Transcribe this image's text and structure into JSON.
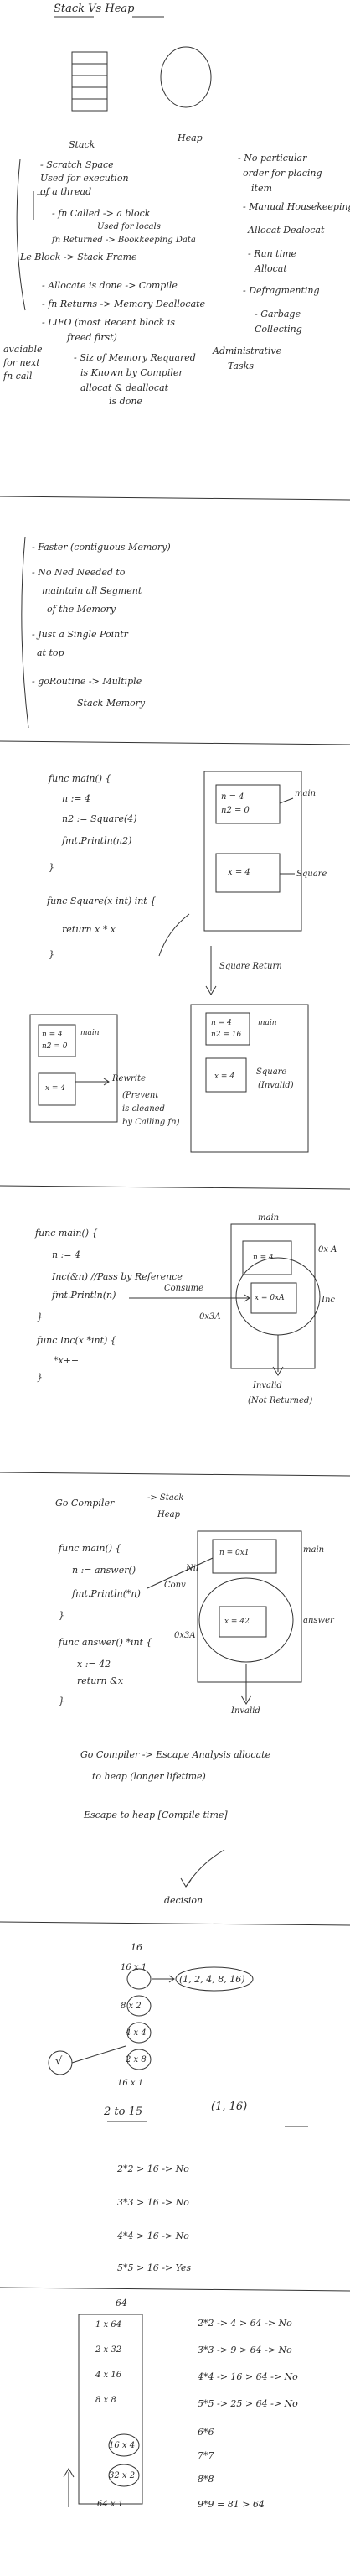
{
  "section1": {
    "title": "Stack Vs Heap",
    "stack_label": "Stack",
    "heap_label": "Heap",
    "stack_notes": [
      "- Scratch Space",
      "Used for execution",
      "of a thread",
      "- fn Called -> a block",
      "Used for locals",
      "fn Returned -> Bookkeeping Data",
      "Le Block -> Stack Frame",
      "- Allocate is done -> Compile",
      "- fn Returns -> Memory Deallocate",
      "- LIFO (most Recent block is",
      "freed first)",
      "- Siz of Memory Requared",
      "is Known by Compiler",
      "allocat & deallocat",
      "is done"
    ],
    "side_note": [
      "avaiable",
      "for next",
      "fn call"
    ],
    "heap_notes": [
      "- No particular",
      "order for placing",
      "item",
      "- Manual Housekeeping",
      "Allocat Dealocat",
      "- Run time",
      "Allocat",
      "- Defragmenting",
      "- Garbage",
      "Collecting",
      "Administrative",
      "Tasks"
    ]
  },
  "section2": {
    "lines": [
      "- Faster (contiguous Memory)",
      "- No Ned Needed to",
      "maintain all Segment",
      "of the Memory",
      "- Just a Single Pointr",
      "at top",
      "- goRoutine -> Multiple",
      "Stack Memory"
    ]
  },
  "section3": {
    "code": [
      "func main() {",
      "n := 4",
      "n2 := Square(4)",
      "fmt.Println(n2)",
      "}",
      "func Square(x int) int {",
      "return x * x",
      "}"
    ],
    "frame_main": [
      "n = 4",
      "n2 = 0"
    ],
    "frame_square": "x = 4",
    "label_main": "main",
    "label_square": "Square",
    "arrow_label": "Square Return",
    "after_main": [
      "n = 4",
      "n2 = 16"
    ],
    "after_square": [
      "Square",
      "(Invalid)"
    ],
    "note": [
      "Rewrite",
      "(Prevent",
      "is cleaned",
      "by Calling fn)"
    ]
  },
  "section4": {
    "code": [
      "func main() {",
      "n := 4",
      "Inc(&n)  //Pass by Reference",
      "fmt.Println(n)",
      "}",
      "func Inc(x *int) {",
      "*x++",
      "}"
    ],
    "labels": [
      "main",
      "0x A",
      "n = 4",
      "x = 0xA",
      "Inc",
      "0x3A",
      "Consume"
    ],
    "note": [
      "Invalid",
      "(Not Returned)"
    ]
  },
  "section5": {
    "title": "Go Compiler",
    "title_lines": [
      "-> Stack",
      "Heap"
    ],
    "code": [
      "func main() {",
      "n := answer()",
      "fmt.Println(*n)",
      "}",
      "func answer() *int {",
      "x := 42",
      "return &x",
      "}"
    ],
    "labels": [
      "main",
      "n = 0x1",
      "x = 42",
      "answer",
      "Invalid",
      "0x3A",
      "Nil",
      "Conv"
    ],
    "notes": [
      "Go Compiler -> Escape Analysis allocate",
      "to heap (longer lifetime)",
      "Escape to heap [Compile time]",
      "decision"
    ]
  },
  "section6": {
    "top": "16",
    "tree": [
      "16 x 1",
      "8 x 2",
      "4 x 4",
      "2 x 8",
      "16 x 1"
    ],
    "set": "(1, 2, 4, 8, 16)",
    "sqrt_label": "√",
    "range": "2 to 15",
    "pair": "(1, 16)",
    "checks": [
      "2*2 > 16 -> No",
      "3*3 > 16 -> No",
      "4*4 > 16 -> No",
      "5*5 > 16 -> Yes"
    ]
  },
  "section7": {
    "top": "64",
    "tree": [
      "1 x 64",
      "2 x 32",
      "4 x 16",
      "8 x 8",
      "16 x 4",
      "32 x 2",
      "64 x 1"
    ],
    "checks": [
      "2*2 -> 4 > 64 -> No",
      "3*3 -> 9 > 64 -> No",
      "4*4 -> 16 > 64 -> No",
      "5*5 -> 25 > 64 -> No",
      "6*6",
      "7*7",
      "8*8",
      "9*9 = 81 > 64"
    ]
  }
}
